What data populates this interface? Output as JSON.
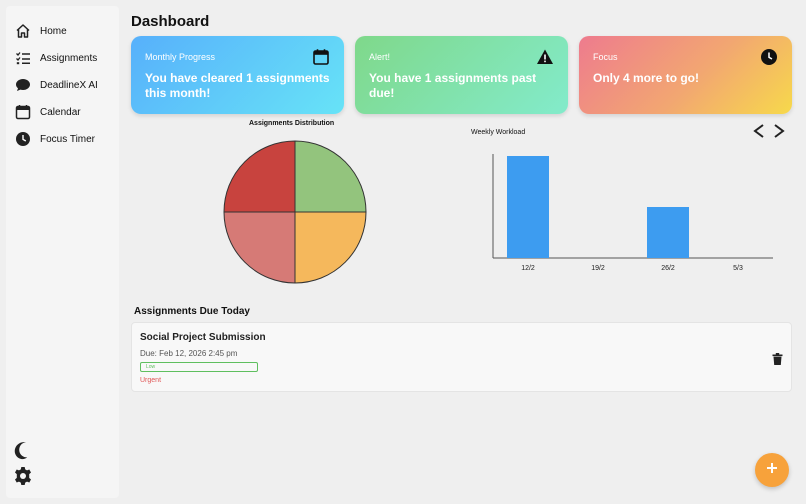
{
  "sidebar": {
    "items": [
      {
        "label": "Home",
        "icon": "home-icon"
      },
      {
        "label": "Assignments",
        "icon": "checklist-icon"
      },
      {
        "label": "DeadlineX AI",
        "icon": "chat-bubble-icon"
      },
      {
        "label": "Calendar",
        "icon": "calendar-icon"
      },
      {
        "label": "Focus Timer",
        "icon": "clock-icon"
      }
    ],
    "bottom_icons": [
      "moon-icon",
      "gear-icon"
    ]
  },
  "page": {
    "title": "Dashboard"
  },
  "cards": {
    "progress": {
      "title": "Monthly Progress",
      "body": "You have cleared 1 assignments this month!",
      "icon": "calendar-icon"
    },
    "alert": {
      "title": "Alert!",
      "body": "You have 1 assignments past due!",
      "icon": "warning-icon"
    },
    "focus": {
      "title": "Focus",
      "body": "Only 4 more to go!",
      "icon": "clock-icon"
    }
  },
  "chart_data": [
    {
      "type": "pie",
      "title": "Assignments Distribution",
      "slices": [
        {
          "value": 1,
          "color": "#f5b85c"
        },
        {
          "value": 1,
          "color": "#d67a76"
        },
        {
          "value": 1,
          "color": "#c8433e"
        },
        {
          "value": 1,
          "color": "#93c47d"
        }
      ]
    },
    {
      "type": "bar",
      "title": "Weekly Workload",
      "categories": [
        "12/2",
        "19/2",
        "26/2",
        "5/3"
      ],
      "values": [
        2,
        0,
        1,
        0
      ],
      "ylim": [
        0,
        2
      ],
      "color": "#3d9cf0",
      "grid": false
    }
  ],
  "workload_nav": {
    "prev_icon": "chevron-left-icon",
    "next_icon": "chevron-right-icon"
  },
  "due_today": {
    "title": "Assignments Due Today",
    "items": [
      {
        "title": "Social Project Submission",
        "due": "Due: Feb 12, 2026 2:45 pm",
        "priority": "Low",
        "status": "Urgent"
      }
    ]
  },
  "fab": {
    "icon": "plus-icon",
    "color": "#f7a23b"
  }
}
